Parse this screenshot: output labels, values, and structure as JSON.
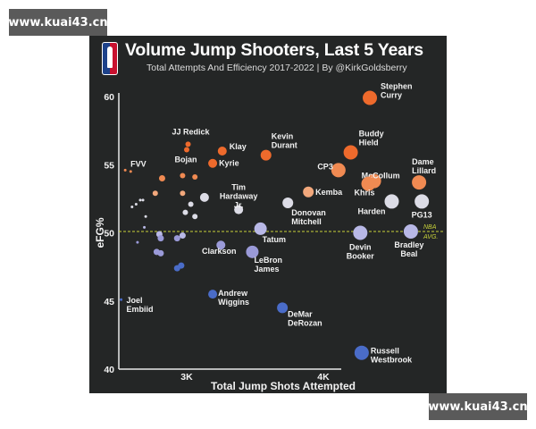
{
  "watermarks": {
    "top": "www.kuai43.cn",
    "bottom": "www.kuai43.cn"
  },
  "header": {
    "logo": "nba-logo-icon",
    "title": "Volume Jump Shooters, Last 5 Years",
    "subtitle": "Total Attempts And Efficiency 2017-2022 | By @KirkGoldsberry"
  },
  "colors": {
    "background": "#242626",
    "high_efficiency": "#ee6a2c",
    "mid_high": "#f2a87c",
    "near_avg": "#dcdce6",
    "below_avg": "#9a9ad8",
    "low_efficiency": "#4a6cc8",
    "avg_line": "#c8d23a"
  },
  "chart_data": {
    "type": "scatter",
    "title": "Volume Jump Shooters, Last 5 Years",
    "subtitle": "Total Attempts And Efficiency 2017-2022 | By @KirkGoldsberry",
    "xlabel": "Total Jump Shots Attempted",
    "ylabel": "eFG%",
    "xlim": [
      2500,
      4900
    ],
    "ylim": [
      40,
      60
    ],
    "x_ticks": [
      "3K",
      "4K"
    ],
    "y_ticks": [
      "40",
      "45",
      "50",
      "55",
      "60"
    ],
    "reference_line": {
      "y": 50.1,
      "label": "NBA AVG."
    },
    "grid": false,
    "points": [
      {
        "name": "Stephen Curry",
        "label": [
          "Stephen",
          "Curry"
        ],
        "x": 4340,
        "y": 59.9,
        "r": 8
      },
      {
        "name": "JJ Redick",
        "label": [
          "JJ Redick"
        ],
        "x": 3010,
        "y": 56.5,
        "r": 3
      },
      {
        "name": "Bojan",
        "label": [
          "Bojan"
        ],
        "x": 3000,
        "y": 56.1,
        "r": 3
      },
      {
        "name": "Klay",
        "label": [
          "Klay"
        ],
        "x": 3260,
        "y": 56.0,
        "r": 5
      },
      {
        "name": "Kevin Durant",
        "label": [
          "Kevin",
          "Durant"
        ],
        "x": 3580,
        "y": 55.7,
        "r": 6
      },
      {
        "name": "Buddy Hield",
        "label": [
          "Buddy",
          "Hield"
        ],
        "x": 4200,
        "y": 55.9,
        "r": 8
      },
      {
        "name": "Kyrie",
        "label": [
          "Kyrie"
        ],
        "x": 3190,
        "y": 55.1,
        "r": 5
      },
      {
        "name": "FVV",
        "label": [
          "FVV"
        ],
        "x": 2550,
        "y": 54.6,
        "r": 1.5
      },
      {
        "name": "CP3",
        "label": [
          "CP3"
        ],
        "x": 4110,
        "y": 54.6,
        "r": 8
      },
      {
        "name": "McCollum",
        "label": [
          "McCollum"
        ],
        "x": 4370,
        "y": 53.8,
        "r": 8
      },
      {
        "name": "Khris",
        "label": [
          "Khris"
        ],
        "x": 4330,
        "y": 53.6,
        "r": 8
      },
      {
        "name": "Dame Lillard",
        "label": [
          "Dame",
          "Lillard"
        ],
        "x": 4700,
        "y": 53.7,
        "r": 8
      },
      {
        "name": "Kemba",
        "label": [
          "Kemba"
        ],
        "x": 3890,
        "y": 53.0,
        "r": 6
      },
      {
        "name": "Tim Hardaway Jr.",
        "label": [
          "Tim",
          "Hardaway",
          "Jr."
        ],
        "x": 3380,
        "y": 51.7,
        "r": 5
      },
      {
        "name": "Donovan Mitchell",
        "label": [
          "Donovan",
          "Mitchell"
        ],
        "x": 3740,
        "y": 52.2,
        "r": 6
      },
      {
        "name": "Harden",
        "label": [
          "Harden"
        ],
        "x": 4500,
        "y": 52.3,
        "r": 8
      },
      {
        "name": "PG13",
        "label": [
          "PG13"
        ],
        "x": 4720,
        "y": 52.3,
        "r": 8
      },
      {
        "name": "Tatum",
        "label": [
          "Tatum"
        ],
        "x": 3540,
        "y": 50.3,
        "r": 7
      },
      {
        "name": "Devin Booker",
        "label": [
          "Devin",
          "Booker"
        ],
        "x": 4270,
        "y": 50.0,
        "r": 8
      },
      {
        "name": "Bradley Beal",
        "label": [
          "Bradley",
          "Beal"
        ],
        "x": 4640,
        "y": 50.1,
        "r": 8
      },
      {
        "name": "Clarkson",
        "label": [
          "Clarkson"
        ],
        "x": 3250,
        "y": 49.1,
        "r": 5
      },
      {
        "name": "LeBron James",
        "label": [
          "LeBron",
          "James"
        ],
        "x": 3480,
        "y": 48.6,
        "r": 7
      },
      {
        "name": "Joel Embiid",
        "label": [
          "Joel",
          "Embiid"
        ],
        "x": 2520,
        "y": 45.1,
        "r": 1.5
      },
      {
        "name": "Andrew Wiggins",
        "label": [
          "Andrew",
          "Wiggins"
        ],
        "x": 3190,
        "y": 45.5,
        "r": 5
      },
      {
        "name": "DeMar DeRozan",
        "label": [
          "DeMar",
          "DeRozan"
        ],
        "x": 3700,
        "y": 44.5,
        "r": 6
      },
      {
        "name": "Russell Westbrook",
        "label": [
          "Russell",
          "Westbrook"
        ],
        "x": 4280,
        "y": 41.2,
        "r": 8
      }
    ],
    "unlabeled_points": [
      {
        "x": 2590,
        "y": 54.5,
        "r": 1.5
      },
      {
        "x": 2820,
        "y": 54.0,
        "r": 3.5
      },
      {
        "x": 2970,
        "y": 54.2,
        "r": 3
      },
      {
        "x": 3060,
        "y": 54.1,
        "r": 3
      },
      {
        "x": 2770,
        "y": 52.9,
        "r": 3
      },
      {
        "x": 2970,
        "y": 52.9,
        "r": 3
      },
      {
        "x": 3130,
        "y": 52.6,
        "r": 5
      },
      {
        "x": 2600,
        "y": 51.9,
        "r": 1.5
      },
      {
        "x": 2630,
        "y": 52.1,
        "r": 1.5
      },
      {
        "x": 2660,
        "y": 52.4,
        "r": 1.5
      },
      {
        "x": 2680,
        "y": 52.4,
        "r": 1.5
      },
      {
        "x": 3030,
        "y": 52.1,
        "r": 3
      },
      {
        "x": 2990,
        "y": 51.5,
        "r": 3
      },
      {
        "x": 2700,
        "y": 51.2,
        "r": 1.5
      },
      {
        "x": 3060,
        "y": 51.2,
        "r": 3
      },
      {
        "x": 2690,
        "y": 50.4,
        "r": 1.5
      },
      {
        "x": 2640,
        "y": 49.3,
        "r": 1.5
      },
      {
        "x": 2800,
        "y": 49.9,
        "r": 3.5
      },
      {
        "x": 2810,
        "y": 49.6,
        "r": 3.5
      },
      {
        "x": 2930,
        "y": 49.6,
        "r": 3.5
      },
      {
        "x": 2970,
        "y": 49.8,
        "r": 3.5
      },
      {
        "x": 2780,
        "y": 48.6,
        "r": 3.5
      },
      {
        "x": 2810,
        "y": 48.5,
        "r": 3.5
      },
      {
        "x": 2930,
        "y": 47.4,
        "r": 3.5
      },
      {
        "x": 2960,
        "y": 47.6,
        "r": 3.5
      }
    ]
  }
}
